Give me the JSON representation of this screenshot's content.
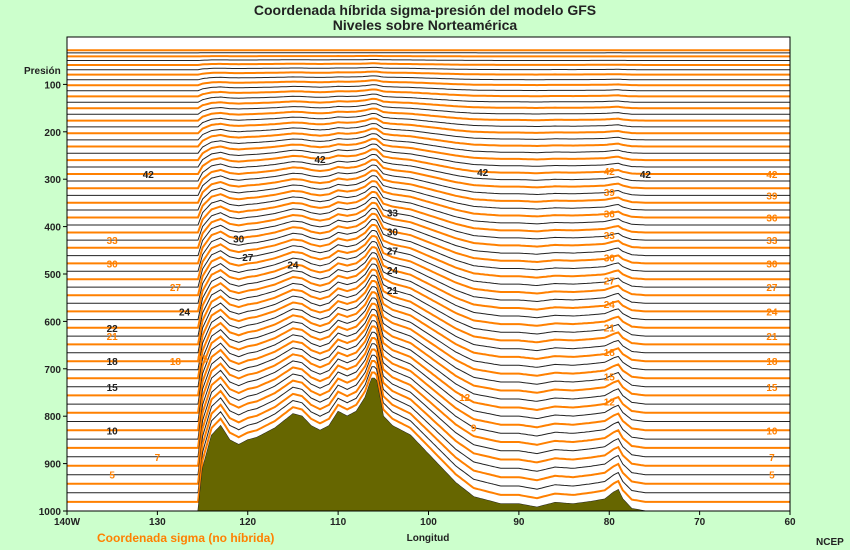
{
  "chart_data": {
    "type": "line",
    "title": "Coordenada híbrida sigma-presión del modelo GFS",
    "subtitle": "Niveles sobre Norteamérica",
    "xlabel": "Longitud",
    "ylabel": "Presión",
    "x_ticks": [
      "140W",
      "130",
      "120",
      "110",
      "100",
      "90",
      "80",
      "70",
      "60"
    ],
    "y_ticks": [
      "100",
      "200",
      "300",
      "400",
      "500",
      "600",
      "700",
      "800",
      "900",
      "1000"
    ],
    "xlim": [
      -140,
      -60
    ],
    "ylim": [
      1000,
      0
    ],
    "legend": [
      {
        "name": "Coordenada sigma (no híbrida)",
        "color": "#ff8000"
      }
    ],
    "colors": {
      "sigma_lines": "#ff8000",
      "hybrid_lines": "#222222",
      "terrain": "#666600",
      "background": "#ccffcc"
    },
    "level_count": 64,
    "terrain_profile": {
      "longitude": [
        -140,
        -125.5,
        -125,
        -124,
        -123,
        -122,
        -121,
        -120,
        -119,
        -117,
        -115,
        -114,
        -113,
        -112,
        -111,
        -110,
        -109,
        -108,
        -107,
        -106.3,
        -105.8,
        -105,
        -104,
        -102,
        -100,
        -97,
        -95,
        -92,
        -90,
        -88,
        -86,
        -84,
        -82,
        -80.5,
        -79.5,
        -79,
        -78.5,
        -77.5,
        -76,
        -74,
        -70,
        -65,
        -60
      ],
      "surface_pressure_hpa": [
        1000,
        1000,
        910,
        840,
        820,
        850,
        860,
        850,
        845,
        825,
        795,
        800,
        820,
        830,
        820,
        790,
        800,
        790,
        760,
        720,
        720,
        800,
        820,
        840,
        880,
        940,
        970,
        985,
        985,
        992,
        982,
        985,
        980,
        975,
        960,
        955,
        975,
        995,
        1000,
        1000,
        1000,
        1000,
        1000
      ]
    },
    "level_labels_sigma": [
      {
        "lon": -135,
        "text": "5"
      },
      {
        "lon": -130,
        "text": "7"
      },
      {
        "lon": -125,
        "text": "15"
      },
      {
        "lon": -95,
        "text": "9"
      },
      {
        "lon": -96,
        "text": "12"
      },
      {
        "lon": -62,
        "text": "5"
      },
      {
        "lon": -62,
        "text": "7"
      },
      {
        "lon": -62,
        "text": "10"
      },
      {
        "lon": -62,
        "text": "15"
      },
      {
        "lon": -62,
        "text": "18"
      },
      {
        "lon": -62,
        "text": "21"
      },
      {
        "lon": -62,
        "text": "24"
      },
      {
        "lon": -62,
        "text": "27"
      },
      {
        "lon": -62,
        "text": "30"
      },
      {
        "lon": -62,
        "text": "33"
      },
      {
        "lon": -62,
        "text": "36"
      },
      {
        "lon": -62,
        "text": "39"
      },
      {
        "lon": -62,
        "text": "42"
      },
      {
        "lon": -80,
        "text": "12"
      },
      {
        "lon": -80,
        "text": "15"
      },
      {
        "lon": -80,
        "text": "18"
      },
      {
        "lon": -80,
        "text": "21"
      },
      {
        "lon": -80,
        "text": "24"
      },
      {
        "lon": -80,
        "text": "27"
      },
      {
        "lon": -80,
        "text": "30"
      },
      {
        "lon": -80,
        "text": "33"
      },
      {
        "lon": -80,
        "text": "36"
      },
      {
        "lon": -80,
        "text": "39"
      },
      {
        "lon": -80,
        "text": "42"
      },
      {
        "lon": -135,
        "text": "33"
      },
      {
        "lon": -135,
        "text": "30"
      },
      {
        "lon": -135,
        "text": "21"
      },
      {
        "lon": -128,
        "text": "18"
      },
      {
        "lon": -128,
        "text": "27"
      }
    ],
    "level_labels_hybrid": [
      {
        "lon": -135,
        "text": "10"
      },
      {
        "lon": -135,
        "text": "15"
      },
      {
        "lon": -135,
        "text": "18"
      },
      {
        "lon": -135,
        "text": "22"
      },
      {
        "lon": -127,
        "text": "24"
      },
      {
        "lon": -120,
        "text": "27"
      },
      {
        "lon": -115,
        "text": "24"
      },
      {
        "lon": -104,
        "text": "27"
      },
      {
        "lon": -104,
        "text": "24"
      },
      {
        "lon": -104,
        "text": "21"
      },
      {
        "lon": -104,
        "text": "30"
      },
      {
        "lon": -104,
        "text": "33"
      },
      {
        "lon": -121,
        "text": "30"
      },
      {
        "lon": -131,
        "text": "42"
      },
      {
        "lon": -112,
        "text": "42"
      },
      {
        "lon": -94,
        "text": "42"
      },
      {
        "lon": -76,
        "text": "42"
      }
    ]
  },
  "credit": "NCEP"
}
